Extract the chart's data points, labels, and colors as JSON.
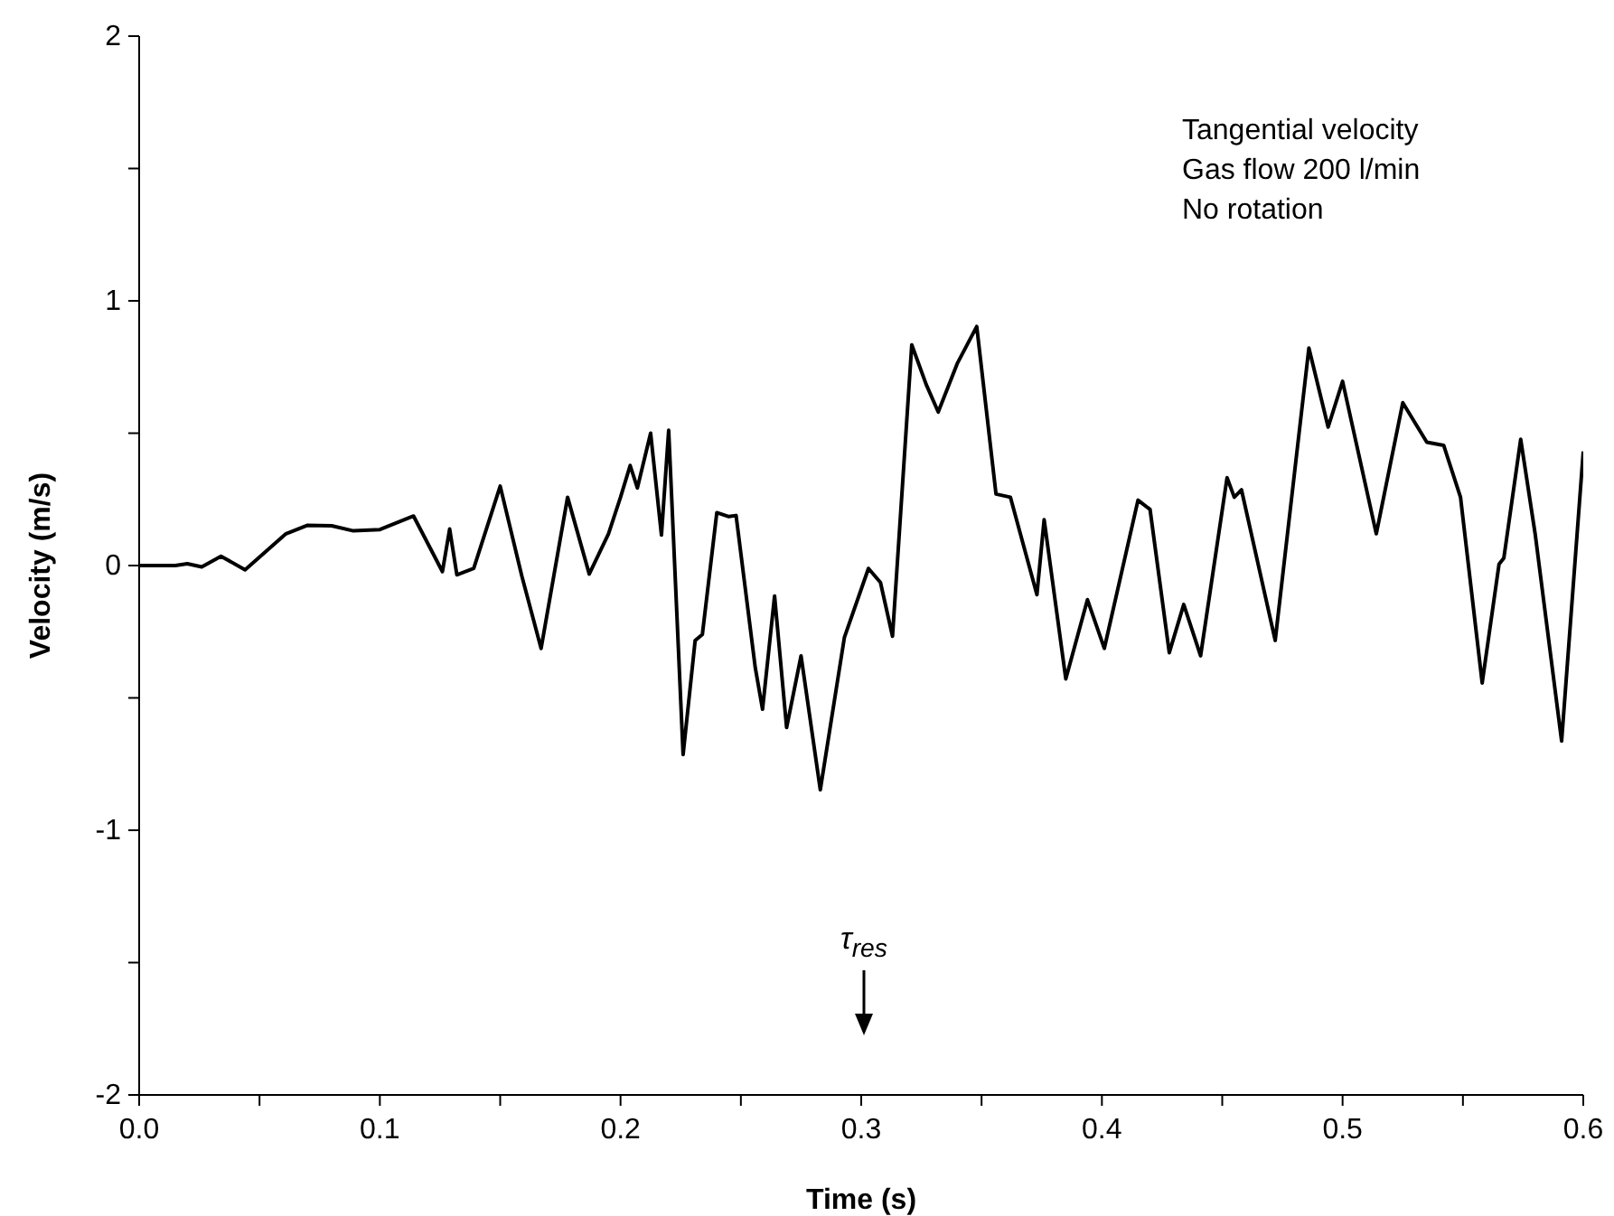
{
  "chart_data": {
    "type": "line",
    "xlabel": "Time (s)",
    "ylabel": "Velocity (m/s)",
    "xlim": [
      0,
      0.6
    ],
    "ylim": [
      -2,
      2
    ],
    "xticks": [
      {
        "value": 0,
        "label": "0.0"
      },
      {
        "value": 0.05,
        "label": null
      },
      {
        "value": 0.1,
        "label": "0.1"
      },
      {
        "value": 0.15,
        "label": null
      },
      {
        "value": 0.2,
        "label": "0.2"
      },
      {
        "value": 0.25,
        "label": null
      },
      {
        "value": 0.3,
        "label": "0.3"
      },
      {
        "value": 0.35,
        "label": null
      },
      {
        "value": 0.4,
        "label": "0.4"
      },
      {
        "value": 0.45,
        "label": null
      },
      {
        "value": 0.5,
        "label": "0.5"
      },
      {
        "value": 0.55,
        "label": null
      },
      {
        "value": 0.6,
        "label": "0.6"
      }
    ],
    "yticks": [
      -2,
      {
        "value": -1.5,
        "label": null
      },
      -1,
      {
        "value": -0.5,
        "label": null
      },
      0,
      {
        "value": 0.5,
        "label": null
      },
      1,
      {
        "value": 1.5,
        "label": null
      },
      2
    ],
    "grid": false,
    "legend": false,
    "marker": "none",
    "line_style": "solid",
    "annotations": [
      "Tangential velocity",
      "Gas flow 200 l/min",
      "No rotation",
      "τ$_{res}$"
    ],
    "series": [
      {
        "color": "#000000",
        "x": [
          0,
          0.015,
          0.02,
          0.026,
          0.034,
          0.044,
          0.061,
          0.07,
          0.08,
          0.089,
          0.1,
          0.114,
          0.126,
          0.129,
          0.132,
          0.139,
          0.15,
          0.159,
          0.167,
          0.178,
          0.187,
          0.195,
          0.2,
          0.204,
          0.207,
          0.2125,
          0.217,
          0.22,
          0.226,
          0.231,
          0.234,
          0.24,
          0.245,
          0.248,
          0.256,
          0.259,
          0.264,
          0.269,
          0.275,
          0.283,
          0.293,
          0.303,
          0.308,
          0.313,
          0.321,
          0.327,
          0.332,
          0.34,
          0.348,
          0.356,
          0.362,
          0.373,
          0.376,
          0.385,
          0.394,
          0.401,
          0.415,
          0.42,
          0.428,
          0.434,
          0.441,
          0.452,
          0.455,
          0.458,
          0.472,
          0.486,
          0.494,
          0.5,
          0.514,
          0.525,
          0.535,
          0.542,
          0.549,
          0.558,
          0.565,
          0.567,
          0.574,
          0.58,
          0.591,
          0.6
        ],
        "values": [
          0,
          0,
          0.007,
          -0.005,
          0.035,
          -0.016,
          0.12,
          0.152,
          0.15,
          0.131,
          0.136,
          0.187,
          -0.023,
          0.138,
          -0.035,
          -0.011,
          0.3,
          -0.04,
          -0.313,
          0.258,
          -0.032,
          0.12,
          0.258,
          0.378,
          0.293,
          0.5,
          0.115,
          0.511,
          -0.714,
          -0.283,
          -0.26,
          0.2,
          0.185,
          0.189,
          -0.387,
          -0.543,
          -0.115,
          -0.612,
          -0.341,
          -0.847,
          -0.272,
          -0.011,
          -0.064,
          -0.267,
          0.834,
          0.684,
          0.58,
          0.765,
          0.903,
          0.27,
          0.258,
          -0.11,
          0.173,
          -0.428,
          -0.129,
          -0.313,
          0.247,
          0.212,
          -0.329,
          -0.147,
          -0.341,
          0.332,
          0.258,
          0.286,
          -0.283,
          0.822,
          0.523,
          0.696,
          0.12,
          0.615,
          0.466,
          0.454,
          0.258,
          -0.444,
          0.005,
          0.028,
          0.477,
          0.12,
          -0.663,
          0.431
        ]
      }
    ]
  }
}
